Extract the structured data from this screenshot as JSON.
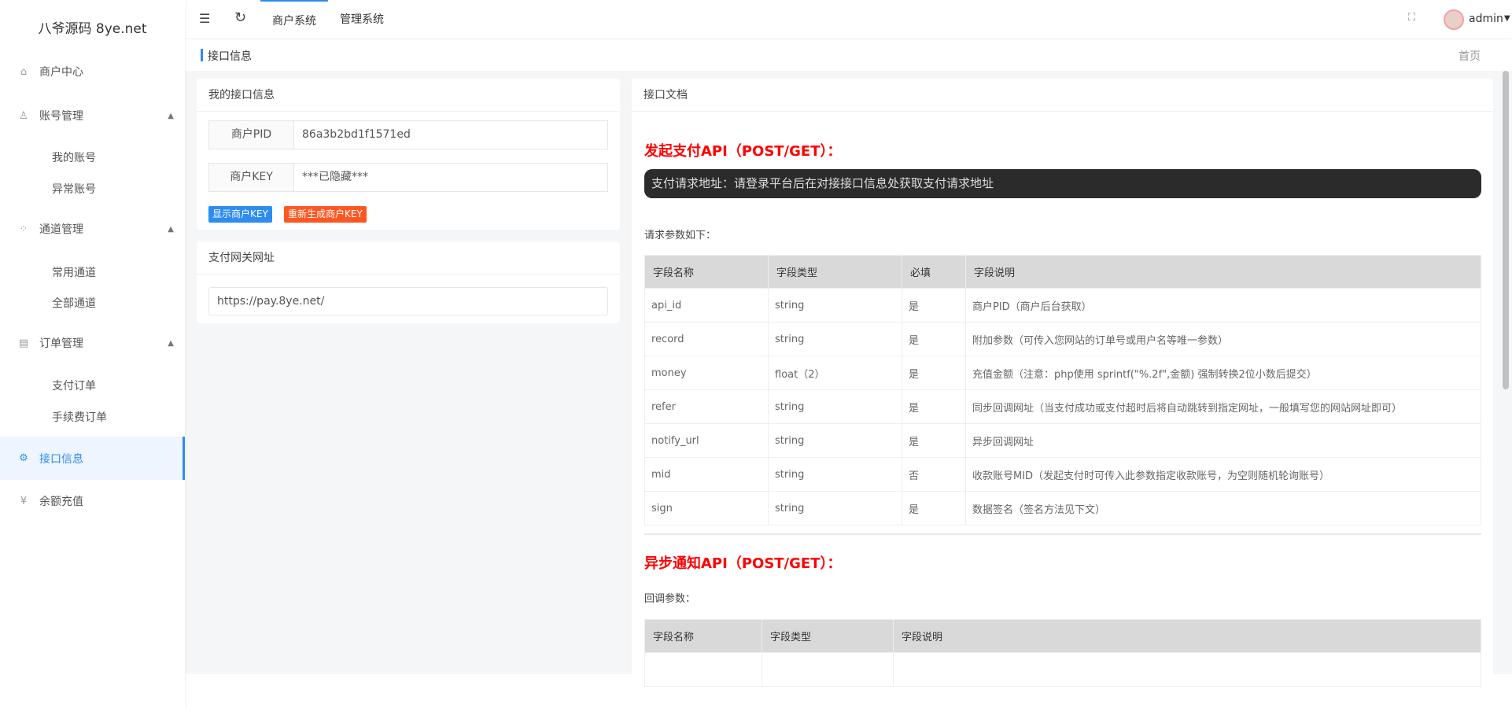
{
  "logo": "八爷源码 8ye.net",
  "sidebar": {
    "items": [
      {
        "label": "商户中心",
        "icon": "home-icon"
      },
      {
        "label": "账号管理",
        "icon": "user-icon",
        "children": [
          "我的账号",
          "异常账号"
        ]
      },
      {
        "label": "通道管理",
        "icon": "apps-icon",
        "children": [
          "常用通道",
          "全部通道"
        ]
      },
      {
        "label": "订单管理",
        "icon": "document-icon",
        "children": [
          "支付订单",
          "手续费订单"
        ]
      },
      {
        "label": "接口信息",
        "icon": "gear-icon",
        "active": true
      },
      {
        "label": "余额充值",
        "icon": "yen-icon"
      }
    ]
  },
  "topbar": {
    "tabs": [
      "商户系统",
      "管理系统"
    ],
    "user": "admin",
    "accent": "#2d8cf0"
  },
  "breadcrumb": {
    "title": "接口信息",
    "home": "首页"
  },
  "mine": {
    "title": "我的接口信息",
    "pid_label": "商户PID",
    "pid": "86a3b2bd1f1571ed",
    "key_label": "商户KEY",
    "key": "***已隐藏***",
    "show_btn": "显示商户KEY",
    "reset_btn": "重新生成商户KEY"
  },
  "gateway": {
    "title": "支付网关网址",
    "url": "https://pay.8ye.net/"
  },
  "doc": {
    "title": "接口文档",
    "pay_title": "发起支付API（POST/GET）：",
    "pay_url_note": "支付请求地址：请登录平台后在对接接口信息处获取支付请求地址",
    "params_label": "请求参数如下：",
    "headers": [
      "字段名称",
      "字段类型",
      "必填",
      "字段说明"
    ],
    "rows": [
      [
        "api_id",
        "string",
        "是",
        "商户PID（商户后台获取）"
      ],
      [
        "record",
        "string",
        "是",
        "附加参数（可传入您网站的订单号或用户名等唯一参数）"
      ],
      [
        "money",
        "float（2）",
        "是",
        "充值金额（注意：php使用 sprintf(\"%.2f\",金额) 强制转换2位小数后提交）"
      ],
      [
        "refer",
        "string",
        "是",
        "同步回调网址（当支付成功或支付超时后将自动跳转到指定网址，一般填写您的网站网址即可）"
      ],
      [
        "notify_url",
        "string",
        "是",
        "异步回调网址"
      ],
      [
        "mid",
        "string",
        "否",
        "收款账号MID（发起支付时可传入此参数指定收款账号，为空则随机轮询账号）"
      ],
      [
        "sign",
        "string",
        "是",
        "数据签名（签名方法见下文）"
      ]
    ],
    "notify_title": "异步通知API（POST/GET）：",
    "callback_label": "回调参数：",
    "headers2": [
      "字段名称",
      "字段类型",
      "字段说明"
    ]
  }
}
